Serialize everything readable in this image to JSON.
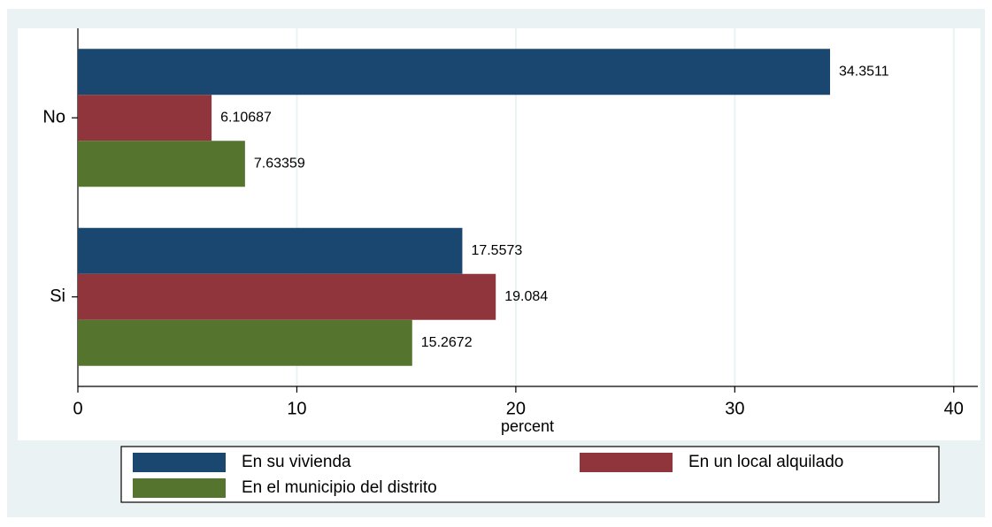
{
  "chart_data": {
    "type": "hbar",
    "categories": [
      "No",
      "Si"
    ],
    "series": [
      {
        "name": "En su vivienda",
        "color": "#1a476f",
        "values": [
          34.3511,
          17.5573
        ]
      },
      {
        "name": "En un local alquilado",
        "color": "#90353b",
        "values": [
          6.10687,
          19.084
        ]
      },
      {
        "name": "En el municipio del distrito",
        "color": "#55752f",
        "values": [
          7.63359,
          15.2672
        ]
      }
    ],
    "xlabel": "percent",
    "xlim": [
      0,
      41.1
    ],
    "xticks": [
      0,
      10,
      20,
      30,
      40
    ],
    "grid": true,
    "legend": "bottom"
  }
}
